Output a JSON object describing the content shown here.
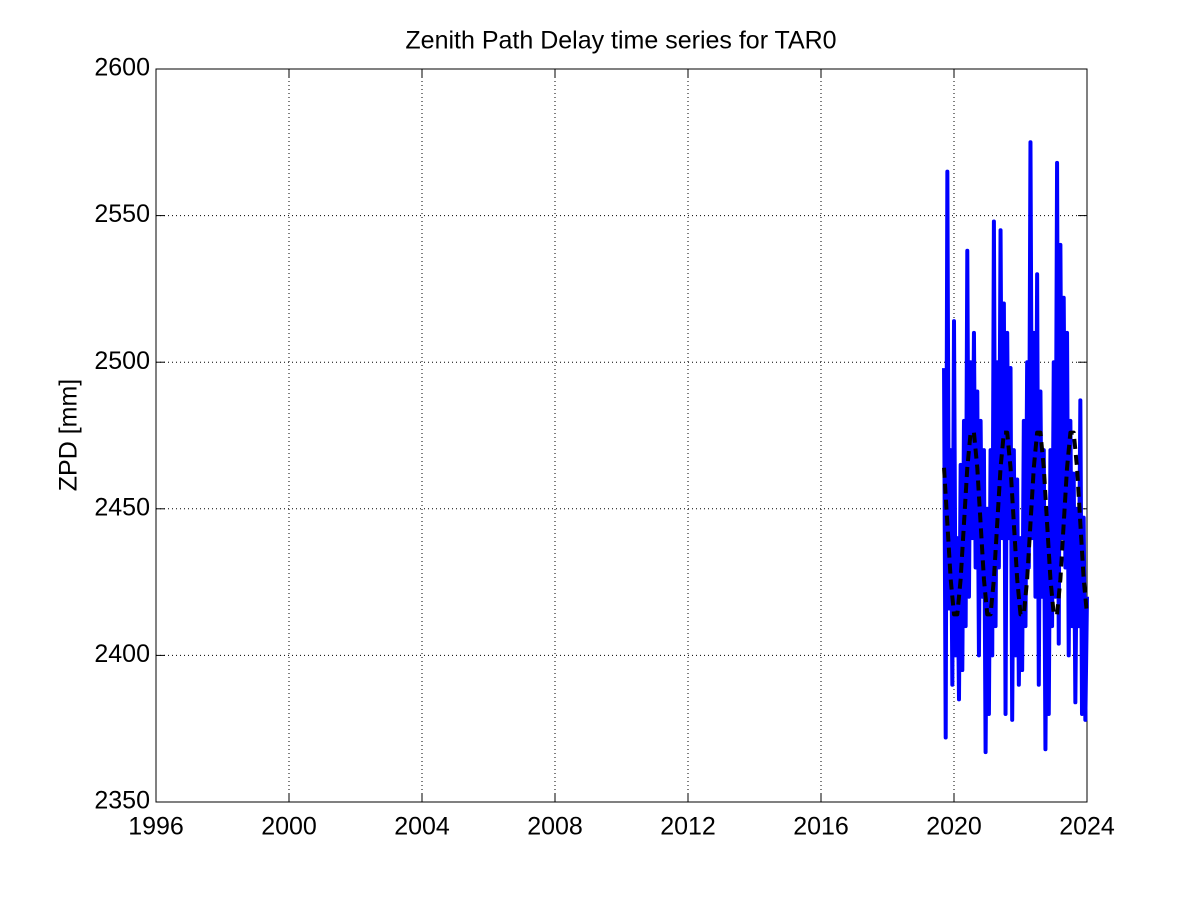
{
  "chart_data": {
    "type": "line",
    "title": "Zenith Path Delay time series for TAR0",
    "y_label": "ZPD [mm]",
    "xlim": [
      1996,
      2024
    ],
    "xticks": [
      1996,
      2000,
      2004,
      2008,
      2012,
      2016,
      2020,
      2024
    ],
    "ylim": [
      2350,
      2600
    ],
    "yticks": [
      2350,
      2400,
      2450,
      2500,
      2550,
      2600
    ],
    "grid": true,
    "series": [
      {
        "color": "#0000ff",
        "dash": false,
        "x": [
          2019.7,
          2019.75,
          2019.8,
          2019.85,
          2019.9,
          2019.95,
          2020,
          2020.05,
          2020.1,
          2020.15,
          2020.2,
          2020.25,
          2020.3,
          2020.35,
          2020.4,
          2020.45,
          2020.5,
          2020.55,
          2020.6,
          2020.65,
          2020.7,
          2020.75,
          2020.8,
          2020.85,
          2020.9,
          2020.95,
          2021,
          2021.05,
          2021.1,
          2021.15,
          2021.2,
          2021.25,
          2021.3,
          2021.35,
          2021.4,
          2021.45,
          2021.5,
          2021.55,
          2021.6,
          2021.65,
          2021.7,
          2021.75,
          2021.8,
          2021.85,
          2021.9,
          2021.95,
          2022,
          2022.05,
          2022.1,
          2022.15,
          2022.2,
          2022.25,
          2022.3,
          2022.35,
          2022.4,
          2022.45,
          2022.5,
          2022.55,
          2022.6,
          2022.65,
          2022.7,
          2022.75,
          2022.8,
          2022.85,
          2022.9,
          2022.95,
          2023,
          2023.05,
          2023.1,
          2023.15,
          2023.2,
          2023.25,
          2023.3,
          2023.35,
          2023.4,
          2023.45,
          2023.5,
          2023.55,
          2023.6,
          2023.65,
          2023.7,
          2023.75,
          2023.8,
          2023.85,
          2023.9,
          2023.95,
          2024
        ],
        "values": [
          2498,
          2372,
          2565,
          2416,
          2470,
          2390,
          2514,
          2400,
          2440,
          2385,
          2465,
          2395,
          2480,
          2410,
          2538,
          2420,
          2500,
          2440,
          2510,
          2430,
          2490,
          2400,
          2480,
          2420,
          2470,
          2367,
          2450,
          2380,
          2470,
          2400,
          2548,
          2410,
          2500,
          2430,
          2545,
          2440,
          2520,
          2380,
          2510,
          2440,
          2498,
          2378,
          2470,
          2400,
          2460,
          2390,
          2440,
          2395,
          2480,
          2410,
          2500,
          2430,
          2575,
          2440,
          2510,
          2420,
          2530,
          2390,
          2490,
          2420,
          2470,
          2368,
          2450,
          2380,
          2470,
          2410,
          2500,
          2420,
          2568,
          2404,
          2540,
          2440,
          2522,
          2430,
          2510,
          2400,
          2480,
          2410,
          2462,
          2384,
          2450,
          2410,
          2487,
          2380,
          2447,
          2378,
          2420
        ]
      },
      {
        "color": "#000000",
        "dash": true,
        "x": [
          2019.7,
          2019.8,
          2019.9,
          2020,
          2020.1,
          2020.2,
          2020.3,
          2020.4,
          2020.5,
          2020.6,
          2020.7,
          2020.8,
          2020.9,
          2021,
          2021.1,
          2021.2,
          2021.3,
          2021.4,
          2021.5,
          2021.6,
          2021.7,
          2021.8,
          2021.9,
          2022,
          2022.1,
          2022.2,
          2022.3,
          2022.4,
          2022.5,
          2022.6,
          2022.7,
          2022.8,
          2022.9,
          2023,
          2023.1,
          2023.2,
          2023.3,
          2023.4,
          2023.5,
          2023.6,
          2023.7,
          2023.8,
          2023.9,
          2024
        ],
        "values": [
          2464,
          2445,
          2426,
          2414,
          2414,
          2426,
          2445,
          2464,
          2476,
          2476,
          2464,
          2445,
          2426,
          2414,
          2414,
          2426,
          2445,
          2464,
          2476,
          2476,
          2464,
          2445,
          2426,
          2414,
          2414,
          2426,
          2445,
          2464,
          2476,
          2476,
          2464,
          2445,
          2426,
          2414,
          2414,
          2426,
          2445,
          2464,
          2476,
          2476,
          2464,
          2445,
          2426,
          2414
        ]
      }
    ]
  }
}
